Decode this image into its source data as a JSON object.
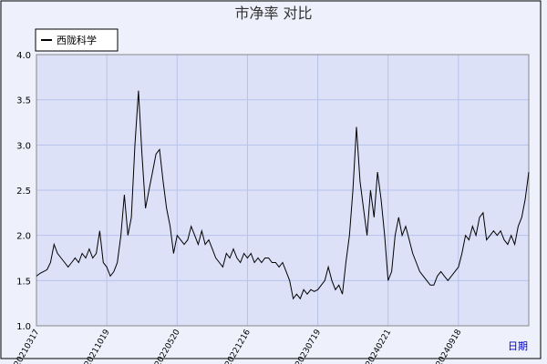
{
  "chart_data": {
    "type": "line",
    "title": "市净率  对比",
    "x_label": "日期",
    "categories": [
      "20210317",
      null,
      null,
      null,
      null,
      null,
      null,
      null,
      null,
      null,
      null,
      null,
      null,
      null,
      null,
      null,
      null,
      null,
      null,
      null,
      "20211019",
      null,
      null,
      null,
      null,
      null,
      null,
      null,
      null,
      null,
      null,
      null,
      null,
      null,
      null,
      null,
      null,
      null,
      null,
      null,
      "20220520",
      null,
      null,
      null,
      null,
      null,
      null,
      null,
      null,
      null,
      null,
      null,
      null,
      null,
      null,
      null,
      null,
      null,
      null,
      null,
      "20221216",
      null,
      null,
      null,
      null,
      null,
      null,
      null,
      null,
      null,
      null,
      null,
      null,
      null,
      null,
      null,
      null,
      null,
      null,
      null,
      "20230719",
      null,
      null,
      null,
      null,
      null,
      null,
      null,
      null,
      null,
      null,
      null,
      null,
      null,
      null,
      null,
      null,
      null,
      null,
      null,
      "20240221",
      null,
      null,
      null,
      null,
      null,
      null,
      null,
      null,
      null,
      null,
      null,
      null,
      null,
      null,
      null,
      null,
      null,
      null,
      null,
      "20240918",
      null,
      null,
      null,
      null,
      null,
      null,
      null,
      null,
      null,
      null,
      null,
      null,
      null,
      null,
      null,
      null,
      null,
      null,
      null,
      null
    ],
    "series": [
      {
        "name": "西陇科学",
        "color": "#000000",
        "values": [
          1.55,
          1.58,
          1.6,
          1.62,
          1.7,
          1.9,
          1.8,
          1.75,
          1.7,
          1.65,
          1.7,
          1.75,
          1.7,
          1.8,
          1.75,
          1.85,
          1.75,
          1.8,
          2.05,
          1.7,
          1.65,
          1.55,
          1.6,
          1.7,
          2.0,
          2.45,
          2.0,
          2.2,
          3.0,
          3.6,
          2.9,
          2.3,
          2.5,
          2.7,
          2.9,
          2.95,
          2.6,
          2.3,
          2.1,
          1.8,
          2.0,
          1.95,
          1.9,
          1.95,
          2.1,
          2.0,
          1.9,
          2.05,
          1.9,
          1.95,
          1.85,
          1.75,
          1.7,
          1.65,
          1.8,
          1.75,
          1.85,
          1.75,
          1.7,
          1.8,
          1.75,
          1.8,
          1.7,
          1.75,
          1.7,
          1.75,
          1.75,
          1.7,
          1.7,
          1.65,
          1.7,
          1.6,
          1.5,
          1.3,
          1.35,
          1.3,
          1.4,
          1.35,
          1.4,
          1.38,
          1.4,
          1.45,
          1.5,
          1.65,
          1.5,
          1.4,
          1.45,
          1.35,
          1.7,
          2.0,
          2.5,
          3.2,
          2.6,
          2.3,
          2.0,
          2.5,
          2.2,
          2.7,
          2.4,
          2.0,
          1.5,
          1.6,
          2.0,
          2.2,
          2.0,
          2.1,
          1.95,
          1.8,
          1.7,
          1.6,
          1.55,
          1.5,
          1.45,
          1.45,
          1.55,
          1.6,
          1.55,
          1.5,
          1.55,
          1.6,
          1.65,
          1.8,
          2.0,
          1.95,
          2.1,
          2.0,
          2.2,
          2.25,
          1.95,
          2.0,
          2.05,
          2.0,
          2.05,
          1.95,
          1.9,
          2.0,
          1.9,
          2.1,
          2.2,
          2.4,
          2.7
        ]
      }
    ],
    "ylim": [
      1,
      4
    ],
    "yticks": [
      {
        "value": 1,
        "label": "1.0"
      },
      {
        "value": 1.5,
        "label": "1.5"
      },
      {
        "value": 2,
        "label": "2.0"
      },
      {
        "value": 2.5,
        "label": "2.5"
      },
      {
        "value": 3,
        "label": "3.0"
      },
      {
        "value": 3.5,
        "label": "3.5"
      },
      {
        "value": 4,
        "label": "4.0"
      }
    ],
    "grid": true,
    "legend": "upper-left"
  }
}
